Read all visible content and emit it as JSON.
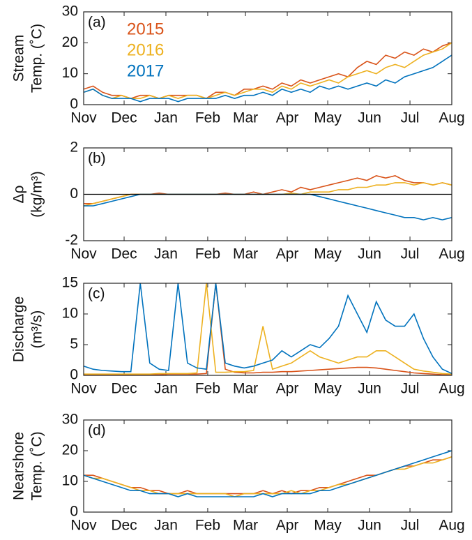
{
  "chart_data": [
    {
      "type": "line",
      "panel_label": "(a)",
      "ylabel": [
        "Stream",
        "Temp. (˚C)"
      ],
      "x": [
        0,
        7,
        14,
        21,
        28,
        35,
        42,
        49,
        56,
        63,
        70,
        77,
        84,
        91,
        98,
        105,
        112,
        119,
        126,
        133,
        140,
        147,
        154,
        161,
        168,
        175,
        182,
        189,
        196,
        203,
        210,
        217,
        224,
        231,
        238,
        245,
        252,
        259,
        266,
        273
      ],
      "xlim": [
        0,
        273
      ],
      "xticks": [
        {
          "value": 0,
          "label": "Nov"
        },
        {
          "value": 30,
          "label": "Dec"
        },
        {
          "value": 61,
          "label": "Jan"
        },
        {
          "value": 92,
          "label": "Feb"
        },
        {
          "value": 120,
          "label": "Mar"
        },
        {
          "value": 151,
          "label": "Apr"
        },
        {
          "value": 181,
          "label": "May"
        },
        {
          "value": 212,
          "label": "Jun"
        },
        {
          "value": 242,
          "label": "Jul"
        },
        {
          "value": 273,
          "label": "Aug"
        }
      ],
      "ylim": [
        0,
        30
      ],
      "yticks": [
        0,
        10,
        20,
        30
      ],
      "legend": "upper left",
      "series": [
        {
          "name": "2015",
          "color": "#d95319",
          "values": [
            5,
            6,
            4,
            3,
            3,
            2,
            3,
            3,
            2,
            3,
            3,
            3,
            3,
            2,
            4,
            4,
            3,
            5,
            5,
            6,
            5,
            7,
            6,
            8,
            7,
            8,
            9,
            10,
            9,
            12,
            14,
            13,
            16,
            15,
            17,
            16,
            18,
            17,
            19,
            20
          ]
        },
        {
          "name": "2016",
          "color": "#edb120",
          "values": [
            4,
            5,
            3,
            2,
            3,
            2,
            2,
            3,
            2,
            3,
            2,
            3,
            3,
            2,
            3,
            4,
            3,
            4,
            5,
            5,
            4,
            6,
            5,
            7,
            6,
            7,
            8,
            7,
            9,
            10,
            11,
            10,
            12,
            13,
            12,
            14,
            16,
            17,
            18,
            20
          ]
        },
        {
          "name": "2017",
          "color": "#0072bd",
          "values": [
            4,
            5,
            3,
            2,
            2,
            2,
            1,
            2,
            2,
            2,
            1,
            2,
            2,
            2,
            2,
            3,
            2,
            3,
            3,
            4,
            3,
            5,
            4,
            5,
            4,
            6,
            5,
            6,
            5,
            6,
            7,
            6,
            8,
            7,
            9,
            10,
            11,
            12,
            14,
            16
          ]
        }
      ]
    },
    {
      "type": "line",
      "panel_label": "(b)",
      "ylabel": [
        "Δρ",
        "(kg/m³)"
      ],
      "zero_line": true,
      "x": [
        0,
        7,
        14,
        21,
        28,
        35,
        42,
        49,
        56,
        63,
        70,
        77,
        84,
        91,
        98,
        105,
        112,
        119,
        126,
        133,
        140,
        147,
        154,
        161,
        168,
        175,
        182,
        189,
        196,
        203,
        210,
        217,
        224,
        231,
        238,
        245,
        252,
        259,
        266,
        273
      ],
      "xlim": [
        0,
        273
      ],
      "xticks": [
        {
          "value": 0,
          "label": "Nov"
        },
        {
          "value": 30,
          "label": "Dec"
        },
        {
          "value": 61,
          "label": "Jan"
        },
        {
          "value": 92,
          "label": "Feb"
        },
        {
          "value": 120,
          "label": "Mar"
        },
        {
          "value": 151,
          "label": "Apr"
        },
        {
          "value": 181,
          "label": "May"
        },
        {
          "value": 212,
          "label": "Jun"
        },
        {
          "value": 242,
          "label": "Jul"
        },
        {
          "value": 273,
          "label": "Aug"
        }
      ],
      "ylim": [
        -2,
        2
      ],
      "yticks": [
        -2,
        0,
        2
      ],
      "series": [
        {
          "color": "#d95319",
          "values": [
            -0.4,
            -0.4,
            -0.3,
            -0.2,
            -0.1,
            0,
            0,
            0,
            0.05,
            0,
            0,
            0,
            0,
            0,
            0,
            0.05,
            0,
            0,
            0.1,
            0,
            0.1,
            0.2,
            0.1,
            0.3,
            0.2,
            0.3,
            0.4,
            0.5,
            0.6,
            0.7,
            0.6,
            0.8,
            0.7,
            0.8,
            0.6,
            0.5,
            0.5,
            0.4,
            0.5,
            0.4
          ]
        },
        {
          "color": "#edb120",
          "values": [
            -0.5,
            -0.4,
            -0.3,
            -0.2,
            -0.1,
            0,
            0,
            0,
            0,
            0,
            0,
            0,
            0,
            0,
            0,
            0,
            0,
            0,
            0,
            0,
            0,
            0,
            0.05,
            0,
            0.1,
            0.1,
            0.1,
            0.2,
            0.2,
            0.3,
            0.3,
            0.4,
            0.4,
            0.5,
            0.5,
            0.4,
            0.5,
            0.4,
            0.5,
            0.4
          ]
        },
        {
          "color": "#0072bd",
          "values": [
            -0.5,
            -0.5,
            -0.4,
            -0.3,
            -0.2,
            -0.1,
            0,
            0,
            0,
            0,
            0,
            0,
            0,
            0,
            0,
            0,
            0,
            0,
            0,
            0,
            0,
            0,
            0,
            0,
            0,
            -0.1,
            -0.2,
            -0.3,
            -0.4,
            -0.5,
            -0.6,
            -0.7,
            -0.8,
            -0.9,
            -1.0,
            -1.0,
            -1.1,
            -1.0,
            -1.1,
            -1.0
          ]
        }
      ]
    },
    {
      "type": "line",
      "panel_label": "(c)",
      "ylabel": [
        "Discharge",
        "(m³/s)"
      ],
      "x": [
        0,
        7,
        14,
        21,
        28,
        35,
        42,
        49,
        56,
        63,
        70,
        77,
        84,
        91,
        98,
        105,
        112,
        119,
        126,
        133,
        140,
        147,
        154,
        161,
        168,
        175,
        182,
        189,
        196,
        203,
        210,
        217,
        224,
        231,
        238,
        245,
        252,
        259,
        266,
        273
      ],
      "xlim": [
        0,
        273
      ],
      "xticks": [
        {
          "value": 0,
          "label": "Nov"
        },
        {
          "value": 30,
          "label": "Dec"
        },
        {
          "value": 61,
          "label": "Jan"
        },
        {
          "value": 92,
          "label": "Feb"
        },
        {
          "value": 120,
          "label": "Mar"
        },
        {
          "value": 151,
          "label": "Apr"
        },
        {
          "value": 181,
          "label": "May"
        },
        {
          "value": 212,
          "label": "Jun"
        },
        {
          "value": 242,
          "label": "Jul"
        },
        {
          "value": 273,
          "label": "Aug"
        }
      ],
      "ylim": [
        0,
        15
      ],
      "yticks": [
        0,
        5,
        10,
        15
      ],
      "series": [
        {
          "color": "#d95319",
          "values": [
            0.1,
            0.1,
            0.1,
            0.1,
            0.1,
            0.1,
            0.1,
            0.1,
            0.1,
            0.2,
            0.2,
            0.2,
            0.2,
            0.3,
            15,
            1,
            0.5,
            0.4,
            0.4,
            0.5,
            0.5,
            0.6,
            0.6,
            0.7,
            0.8,
            0.9,
            1,
            1.1,
            1.2,
            1.3,
            1.3,
            1.2,
            1,
            0.8,
            0.6,
            0.4,
            0.3,
            0.2,
            0.1,
            0.1
          ]
        },
        {
          "color": "#edb120",
          "values": [
            0.2,
            0.2,
            0.2,
            0.2,
            0.2,
            0.2,
            0.2,
            0.2,
            0.3,
            0.3,
            0.3,
            0.3,
            0.4,
            15,
            0.5,
            0.5,
            0.6,
            0.6,
            0.8,
            8,
            1,
            1.5,
            2,
            3,
            4,
            3,
            2.5,
            2,
            2.5,
            3,
            3,
            4,
            4,
            3,
            2,
            1,
            0.7,
            0.5,
            0.3,
            0.2
          ]
        },
        {
          "color": "#0072bd",
          "values": [
            1.5,
            1,
            0.8,
            0.7,
            0.6,
            0.6,
            15,
            2,
            1,
            0.8,
            15,
            2,
            1.2,
            1,
            15,
            2,
            1.5,
            1.2,
            1.5,
            2,
            2.5,
            4,
            3,
            4,
            5,
            4.5,
            6,
            8,
            13,
            10,
            7,
            12,
            9,
            8,
            8,
            10,
            6,
            3,
            1,
            0.3
          ]
        }
      ]
    },
    {
      "type": "line",
      "panel_label": "(d)",
      "ylabel": [
        "Nearshore",
        "Temp. (˚C)"
      ],
      "x": [
        0,
        7,
        14,
        21,
        28,
        35,
        42,
        49,
        56,
        63,
        70,
        77,
        84,
        91,
        98,
        105,
        112,
        119,
        126,
        133,
        140,
        147,
        154,
        161,
        168,
        175,
        182,
        189,
        196,
        203,
        210,
        217,
        224,
        231,
        238,
        245,
        252,
        259,
        266,
        273
      ],
      "xlim": [
        0,
        273
      ],
      "xticks": [
        {
          "value": 0,
          "label": "Nov"
        },
        {
          "value": 30,
          "label": "Dec"
        },
        {
          "value": 61,
          "label": "Jan"
        },
        {
          "value": 92,
          "label": "Feb"
        },
        {
          "value": 120,
          "label": "Mar"
        },
        {
          "value": 151,
          "label": "Apr"
        },
        {
          "value": 181,
          "label": "May"
        },
        {
          "value": 212,
          "label": "Jun"
        },
        {
          "value": 242,
          "label": "Jul"
        },
        {
          "value": 273,
          "label": "Aug"
        }
      ],
      "ylim": [
        0,
        30
      ],
      "yticks": [
        0,
        10,
        20,
        30
      ],
      "series": [
        {
          "color": "#d95319",
          "values": [
            12,
            12,
            11,
            10,
            9,
            8,
            8,
            7,
            7,
            6,
            6,
            7,
            6,
            6,
            6,
            6,
            6,
            6,
            6,
            7,
            6,
            7,
            6,
            7,
            7,
            8,
            8,
            9,
            10,
            11,
            12,
            12,
            13,
            14,
            15,
            15,
            16,
            17,
            17,
            18
          ]
        },
        {
          "color": "#edb120",
          "values": [
            12,
            11,
            11,
            10,
            9,
            8,
            7,
            7,
            6,
            6,
            6,
            6,
            6,
            6,
            6,
            6,
            5,
            6,
            6,
            6,
            6,
            6,
            7,
            6,
            7,
            7,
            8,
            9,
            9,
            10,
            11,
            12,
            13,
            14,
            14,
            15,
            16,
            16,
            17,
            18
          ]
        },
        {
          "color": "#0072bd",
          "values": [
            12,
            11,
            10,
            9,
            8,
            7,
            7,
            6,
            6,
            6,
            5,
            6,
            5,
            5,
            5,
            5,
            5,
            5,
            5,
            6,
            5,
            6,
            6,
            6,
            6,
            7,
            7,
            8,
            9,
            10,
            11,
            12,
            13,
            14,
            15,
            16,
            17,
            18,
            19,
            20
          ]
        }
      ]
    }
  ]
}
